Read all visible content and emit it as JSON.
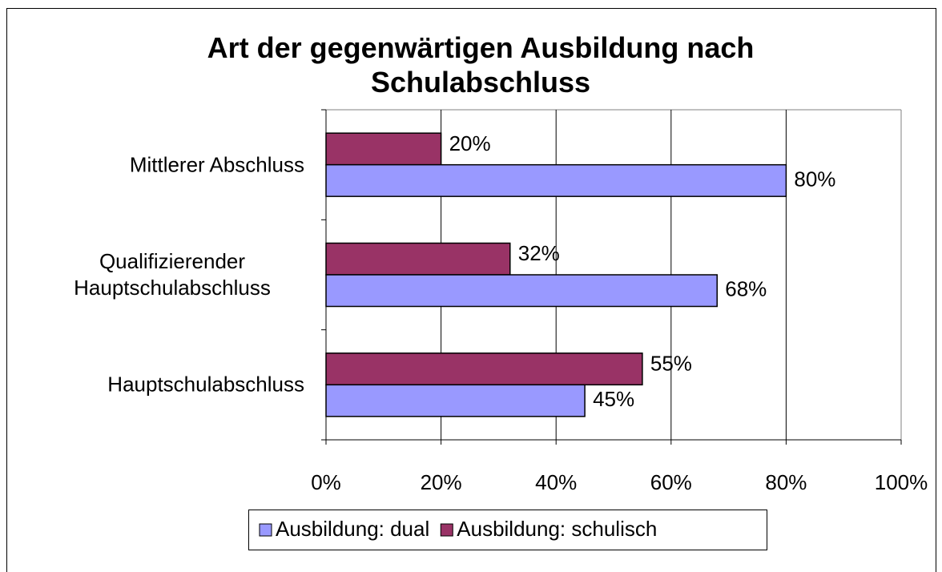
{
  "chart_data": {
    "type": "bar",
    "orientation": "horizontal",
    "title": "Art der gegenwärtigen Ausbildung nach Schulabschluss",
    "categories": [
      "Mittlerer Abschluss",
      "Qualifizierender Hauptschulabschluss",
      "Hauptschulabschluss"
    ],
    "series": [
      {
        "name": "Ausbildung: dual",
        "color": "#9999ff",
        "values": [
          80,
          68,
          45
        ],
        "value_labels": [
          "80%",
          "68%",
          "45%"
        ]
      },
      {
        "name": "Ausbildung: schulisch",
        "color": "#993366",
        "values": [
          20,
          32,
          55
        ],
        "value_labels": [
          "20%",
          "32%",
          "55%"
        ]
      }
    ],
    "xlim": [
      0,
      100
    ],
    "xticks": [
      {
        "value": 0,
        "label": "0%"
      },
      {
        "value": 20,
        "label": "20%"
      },
      {
        "value": 40,
        "label": "40%"
      },
      {
        "value": 60,
        "label": "60%"
      },
      {
        "value": 80,
        "label": "80%"
      },
      {
        "value": 100,
        "label": "100%"
      }
    ],
    "grid": true,
    "legend": "bottom"
  }
}
